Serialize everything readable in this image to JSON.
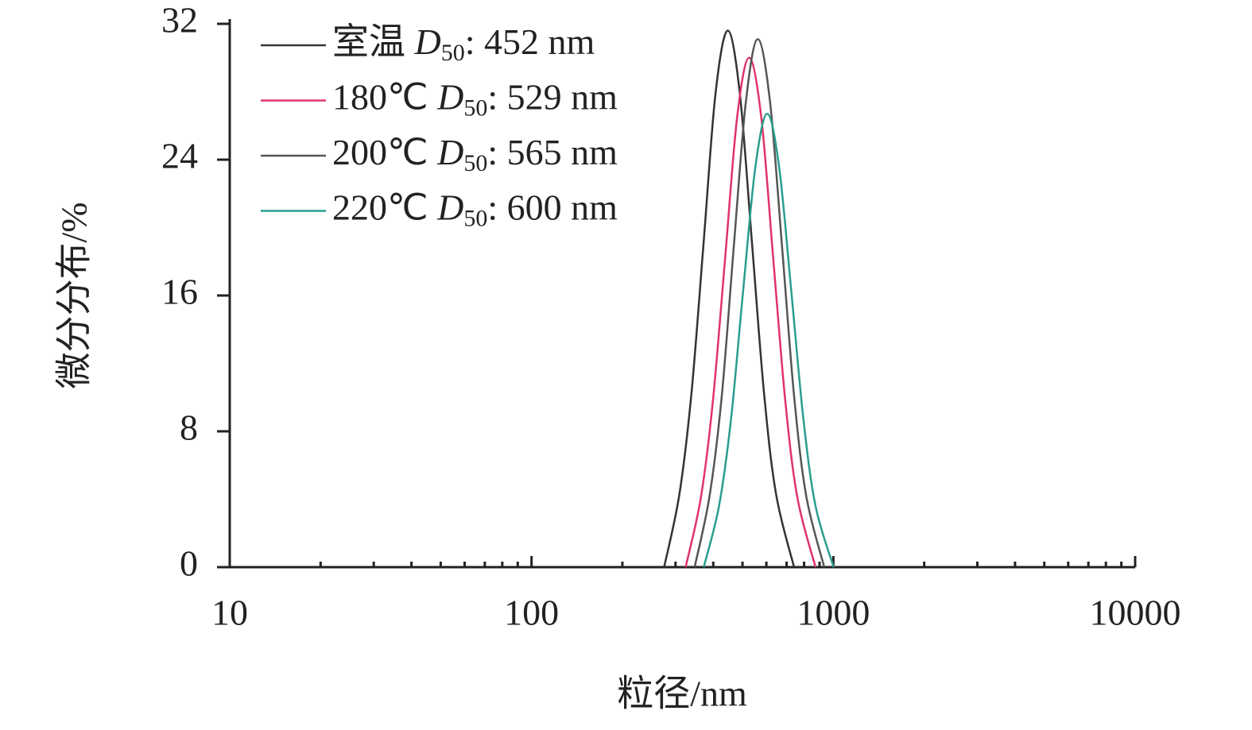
{
  "chart_data": {
    "type": "line",
    "x_label": "粒径/nm",
    "y_label": "微分分布/%",
    "xscale": "log",
    "xlim": [
      10,
      10000
    ],
    "xticks": [
      10,
      100,
      1000,
      10000
    ],
    "ylim": [
      0,
      32
    ],
    "yticks": [
      0,
      8,
      16,
      24,
      32
    ],
    "legend": "upper left",
    "series": [
      {
        "name": "室温  D50: 452 nm",
        "color": "#333333",
        "x": [
          275,
          309,
          339,
          372,
          407,
          447,
          490,
          537,
          589,
          646,
          741
        ],
        "values": [
          0,
          4.3,
          10.3,
          19.2,
          27.9,
          31.6,
          27.9,
          19.2,
          10.3,
          4.3,
          0
        ]
      },
      {
        "name": "180℃ D50: 529 nm",
        "color": "#e0336a",
        "x": [
          324,
          364,
          399,
          438,
          480,
          526,
          577,
          632,
          693,
          760,
          873
        ],
        "values": [
          0,
          4.1,
          9.8,
          18.2,
          26.5,
          30.0,
          26.5,
          18.2,
          9.8,
          4.1,
          0
        ]
      },
      {
        "name": "200℃ D50: 565 nm",
        "color": "#555555",
        "x": [
          347,
          389,
          427,
          468,
          513,
          562,
          617,
          676,
          741,
          813,
          933
        ],
        "values": [
          0,
          4.2,
          10.1,
          18.9,
          27.4,
          31.1,
          27.4,
          18.9,
          10.1,
          4.2,
          0
        ]
      },
      {
        "name": "220℃ D50: 600 nm",
        "color": "#2a9d8f",
        "x": [
          372,
          418,
          458,
          502,
          551,
          604,
          662,
          726,
          796,
          873,
          1002
        ],
        "values": [
          0,
          3.6,
          8.7,
          16.2,
          23.5,
          26.7,
          23.5,
          16.2,
          8.7,
          3.6,
          0
        ]
      }
    ]
  }
}
